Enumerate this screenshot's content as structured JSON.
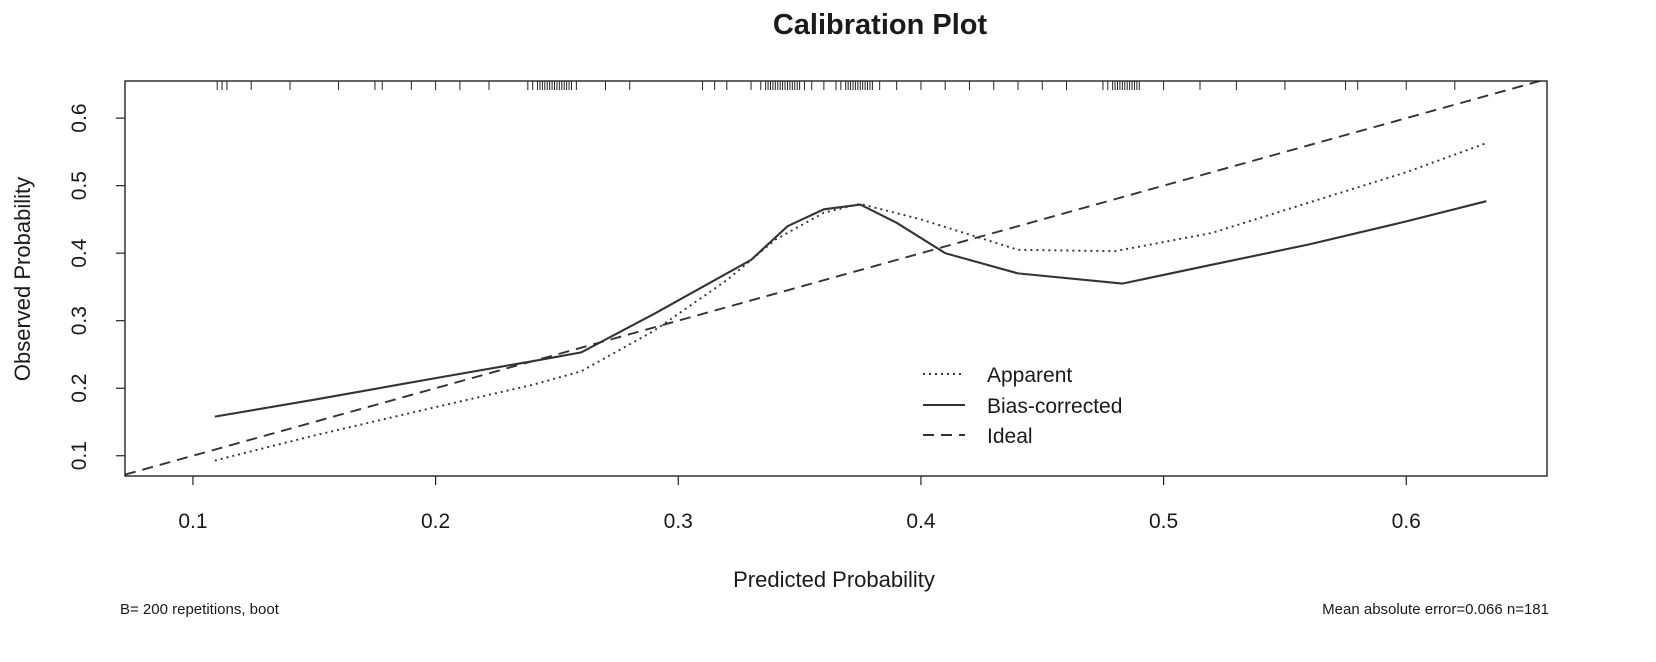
{
  "chart_data": {
    "type": "line",
    "title": "Calibration Plot",
    "xlabel": "Predicted Probability",
    "ylabel": "Observed Probability",
    "xlim": [
      0.072,
      0.658
    ],
    "ylim": [
      0.07,
      0.655
    ],
    "x_ticks": [
      0.1,
      0.2,
      0.3,
      0.4,
      0.5,
      0.6
    ],
    "y_ticks": [
      0.1,
      0.2,
      0.3,
      0.4,
      0.5,
      0.6
    ],
    "x_tick_labels": [
      "0.1",
      "0.2",
      "0.3",
      "0.4",
      "0.5",
      "0.6"
    ],
    "y_tick_labels": [
      "0.1",
      "0.2",
      "0.3",
      "0.4",
      "0.5",
      "0.6"
    ],
    "grid": false,
    "legend_position": "center-right",
    "series": [
      {
        "name": "Apparent",
        "style": "dotted",
        "x": [
          0.109,
          0.15,
          0.2,
          0.24,
          0.26,
          0.29,
          0.32,
          0.34,
          0.36,
          0.375,
          0.4,
          0.44,
          0.48,
          0.52,
          0.56,
          0.6,
          0.633
        ],
        "y": [
          0.093,
          0.13,
          0.172,
          0.205,
          0.225,
          0.285,
          0.36,
          0.42,
          0.46,
          0.473,
          0.45,
          0.405,
          0.403,
          0.43,
          0.475,
          0.52,
          0.563
        ]
      },
      {
        "name": "Bias-corrected",
        "style": "solid",
        "x": [
          0.109,
          0.15,
          0.2,
          0.24,
          0.26,
          0.29,
          0.31,
          0.33,
          0.345,
          0.36,
          0.375,
          0.39,
          0.41,
          0.44,
          0.483,
          0.52,
          0.56,
          0.6,
          0.633
        ],
        "y": [
          0.158,
          0.183,
          0.215,
          0.24,
          0.253,
          0.31,
          0.35,
          0.39,
          0.44,
          0.465,
          0.472,
          0.445,
          0.4,
          0.37,
          0.355,
          0.383,
          0.413,
          0.447,
          0.477
        ]
      },
      {
        "name": "Ideal",
        "style": "dashed",
        "x": [
          0.072,
          0.658
        ],
        "y": [
          0.072,
          0.658
        ]
      }
    ],
    "rug_positions": [
      0.11,
      0.112,
      0.114,
      0.124,
      0.14,
      0.16,
      0.175,
      0.178,
      0.19,
      0.2,
      0.21,
      0.222,
      0.238,
      0.24,
      0.242,
      0.243,
      0.244,
      0.245,
      0.246,
      0.247,
      0.248,
      0.249,
      0.25,
      0.251,
      0.252,
      0.253,
      0.254,
      0.255,
      0.256,
      0.258,
      0.27,
      0.28,
      0.31,
      0.315,
      0.32,
      0.33,
      0.334,
      0.336,
      0.337,
      0.338,
      0.339,
      0.34,
      0.341,
      0.342,
      0.343,
      0.344,
      0.345,
      0.346,
      0.347,
      0.348,
      0.349,
      0.35,
      0.352,
      0.355,
      0.36,
      0.365,
      0.367,
      0.369,
      0.37,
      0.371,
      0.372,
      0.373,
      0.374,
      0.375,
      0.376,
      0.377,
      0.378,
      0.379,
      0.38,
      0.383,
      0.39,
      0.4,
      0.41,
      0.42,
      0.43,
      0.44,
      0.45,
      0.46,
      0.475,
      0.477,
      0.479,
      0.48,
      0.481,
      0.482,
      0.483,
      0.484,
      0.485,
      0.486,
      0.487,
      0.488,
      0.489,
      0.49,
      0.5,
      0.515,
      0.53,
      0.55,
      0.575,
      0.58,
      0.6,
      0.62
    ],
    "annotations": {
      "bottom_left": "B= 200 repetitions, boot",
      "bottom_right": "Mean absolute error=0.066 n=181"
    }
  }
}
